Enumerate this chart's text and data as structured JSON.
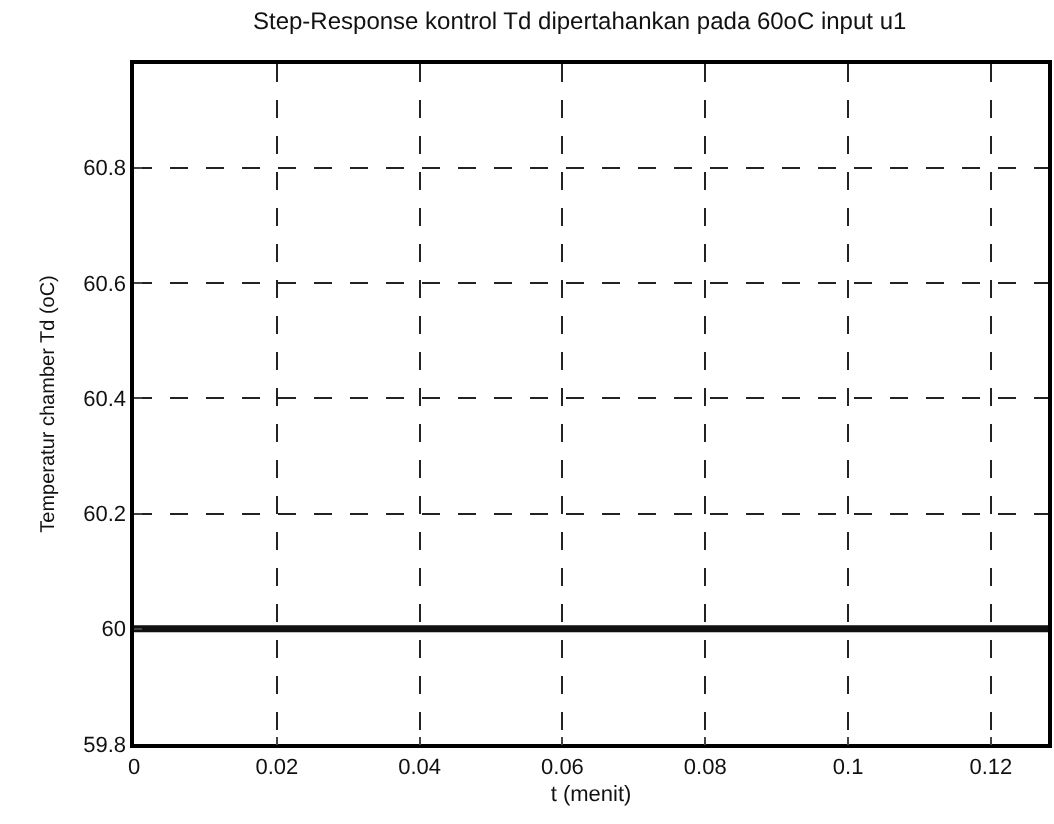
{
  "chart_data": {
    "type": "line",
    "title": "Step-Response kontrol Td dipertahankan pada 60oC input u1",
    "xlabel": "t (menit)",
    "ylabel": "Temperatur chamber Td (oC)",
    "x": [
      0,
      0.128
    ],
    "series": [
      {
        "color": "#111111",
        "values": [
          60,
          60
        ]
      }
    ],
    "xlim": [
      0,
      0.128
    ],
    "xticks": [
      {
        "value": 0,
        "label": "0"
      },
      0.02,
      0.04,
      0.06,
      0.08,
      {
        "value": 0.1,
        "label": "0.1"
      },
      0.12
    ],
    "ylim": [
      59.8,
      60.98
    ],
    "yticks": [
      59.8,
      {
        "value": 60,
        "label": "60"
      },
      60.2,
      60.4,
      60.6,
      60.8
    ],
    "grid": true,
    "line_style": "solid",
    "marker": "none"
  }
}
